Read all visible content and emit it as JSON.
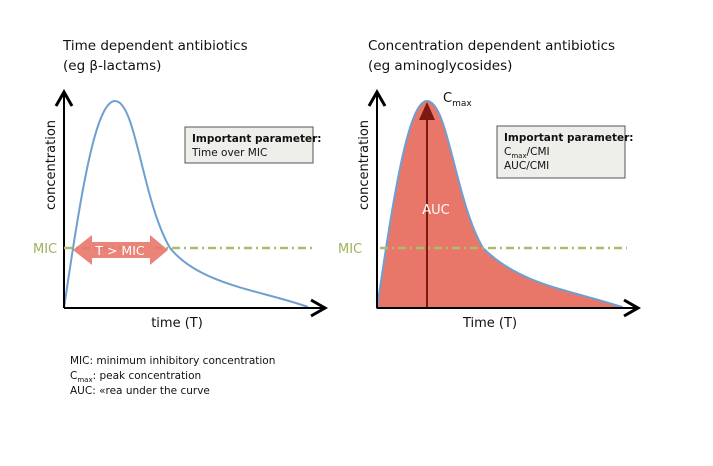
{
  "left_panel": {
    "title_line1": "Time dependent antibiotics",
    "title_line2": "(eg β-lactams)",
    "y_label": "concentration",
    "x_label": "time (T)",
    "mic_label": "MIC",
    "arrow_label": "T > MIC",
    "box_heading": "Important parameter:",
    "box_line1": "Time over MIC"
  },
  "right_panel": {
    "title_line1": "Concentration dependent antibiotics",
    "title_line2": "(eg aminoglycosides)",
    "y_label": "concentration",
    "x_label": "Time (T)",
    "mic_label": "MIC",
    "peak_label": "C",
    "peak_sub": "max",
    "area_label": "AUC",
    "box_heading": "Important parameter:",
    "box_line1_main": "C",
    "box_line1_sub": "max",
    "box_line1_rest": "/CMI",
    "box_line2": "AUC/CMI"
  },
  "legend": {
    "line1": "MIC: minimum inhibitory concentration",
    "line2_main": "C",
    "line2_sub": "max",
    "line2_rest": ": peak concentration",
    "line3": "AUC: «rea under the curve"
  },
  "colors": {
    "curve": "#6f9fd0",
    "mic_line": "#a9bd6e",
    "fill": "#e8776a",
    "arrow_dark": "#7a1a12"
  }
}
